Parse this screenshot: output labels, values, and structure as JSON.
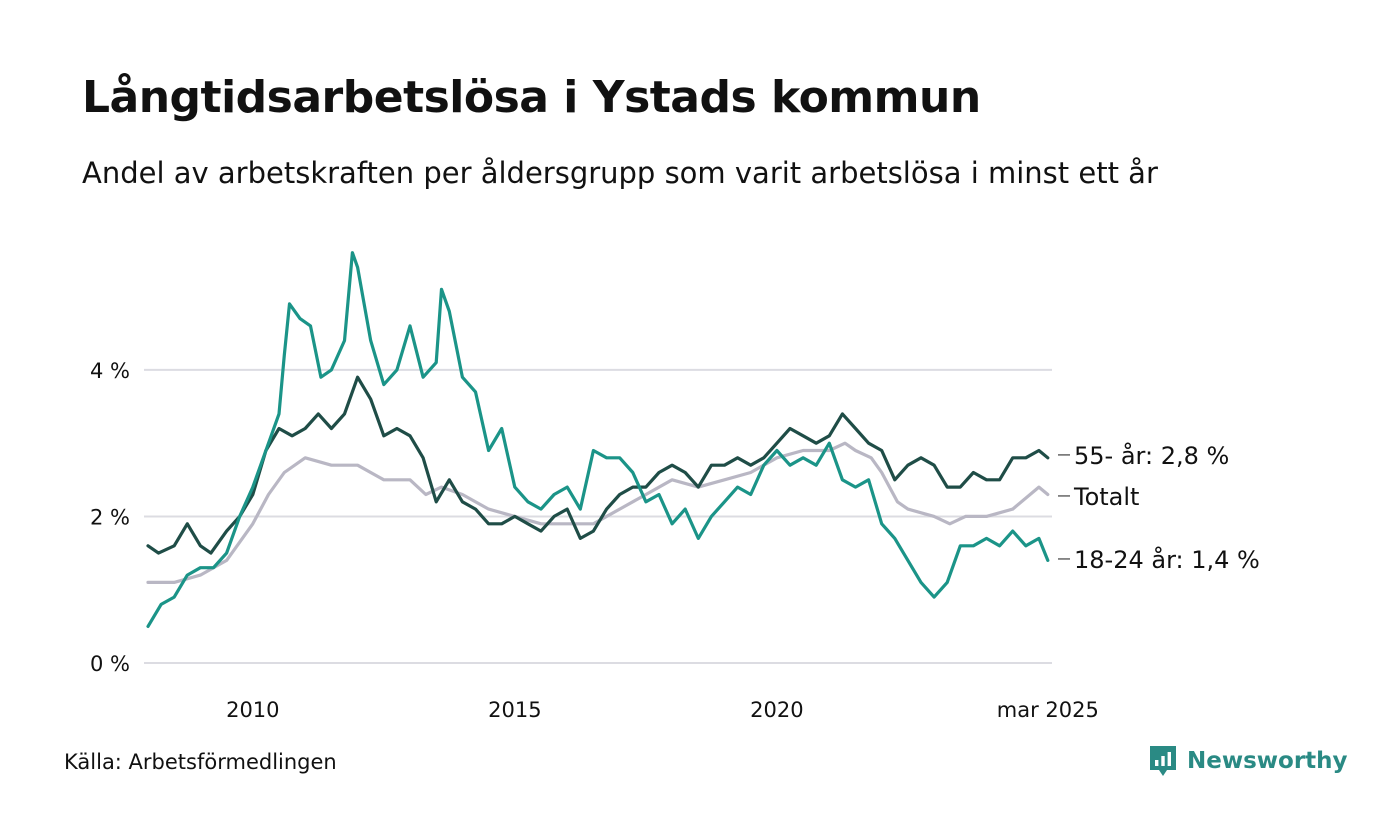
{
  "header": {
    "title": "Långtidsarbetslösa i Ystads kommun",
    "subtitle": "Andel av arbetskraften per åldersgrupp som varit arbetslösa i minst ett år"
  },
  "footer": {
    "source": "Källa: Arbetsförmedlingen",
    "brand": "Newsworthy",
    "brand_color": "#2a8a84"
  },
  "colors": {
    "youth": "#1b9488",
    "senior": "#1f4d47",
    "total": "#b9b7c4",
    "grid": "#dcdce2"
  },
  "chart_data": {
    "type": "line",
    "title": "Långtidsarbetslösa i Ystads kommun",
    "subtitle": "Andel av arbetskraften per åldersgrupp som varit arbetslösa i minst ett år",
    "xlabel": "",
    "ylabel": "",
    "xlim": [
      2008.0,
      2025.25
    ],
    "ylim": [
      0,
      5.8
    ],
    "grid": true,
    "legend": "none",
    "x_ticks": [
      {
        "value": 2010,
        "label": "2010"
      },
      {
        "value": 2015,
        "label": "2015"
      },
      {
        "value": 2020,
        "label": "2020"
      },
      {
        "value": 2025.17,
        "label": "mar 2025"
      }
    ],
    "y_ticks": [
      {
        "value": 0,
        "label": "0 %"
      },
      {
        "value": 2,
        "label": "2 %"
      },
      {
        "value": 4,
        "label": "4 %"
      }
    ],
    "series": [
      {
        "key": "total",
        "label": "Totalt",
        "points": [
          [
            2008.0,
            1.1
          ],
          [
            2008.5,
            1.1
          ],
          [
            2009.0,
            1.2
          ],
          [
            2009.5,
            1.4
          ],
          [
            2010.0,
            1.9
          ],
          [
            2010.3,
            2.3
          ],
          [
            2010.6,
            2.6
          ],
          [
            2011.0,
            2.8
          ],
          [
            2011.5,
            2.7
          ],
          [
            2012.0,
            2.7
          ],
          [
            2012.5,
            2.5
          ],
          [
            2013.0,
            2.5
          ],
          [
            2013.3,
            2.3
          ],
          [
            2013.6,
            2.4
          ],
          [
            2014.0,
            2.3
          ],
          [
            2014.5,
            2.1
          ],
          [
            2015.0,
            2.0
          ],
          [
            2015.5,
            1.9
          ],
          [
            2016.0,
            1.9
          ],
          [
            2016.5,
            1.9
          ],
          [
            2017.0,
            2.1
          ],
          [
            2017.5,
            2.3
          ],
          [
            2018.0,
            2.5
          ],
          [
            2018.5,
            2.4
          ],
          [
            2019.0,
            2.5
          ],
          [
            2019.5,
            2.6
          ],
          [
            2020.0,
            2.8
          ],
          [
            2020.5,
            2.9
          ],
          [
            2021.0,
            2.9
          ],
          [
            2021.3,
            3.0
          ],
          [
            2021.5,
            2.9
          ],
          [
            2021.8,
            2.8
          ],
          [
            2022.0,
            2.6
          ],
          [
            2022.3,
            2.2
          ],
          [
            2022.5,
            2.1
          ],
          [
            2023.0,
            2.0
          ],
          [
            2023.3,
            1.9
          ],
          [
            2023.6,
            2.0
          ],
          [
            2024.0,
            2.0
          ],
          [
            2024.5,
            2.1
          ],
          [
            2025.0,
            2.4
          ],
          [
            2025.17,
            2.3
          ]
        ]
      },
      {
        "key": "senior",
        "label": "55- år: 2,8 %",
        "points": [
          [
            2008.0,
            1.6
          ],
          [
            2008.2,
            1.5
          ],
          [
            2008.5,
            1.6
          ],
          [
            2008.75,
            1.9
          ],
          [
            2009.0,
            1.6
          ],
          [
            2009.2,
            1.5
          ],
          [
            2009.5,
            1.8
          ],
          [
            2009.75,
            2.0
          ],
          [
            2010.0,
            2.3
          ],
          [
            2010.25,
            2.9
          ],
          [
            2010.5,
            3.2
          ],
          [
            2010.75,
            3.1
          ],
          [
            2011.0,
            3.2
          ],
          [
            2011.25,
            3.4
          ],
          [
            2011.5,
            3.2
          ],
          [
            2011.75,
            3.4
          ],
          [
            2012.0,
            3.9
          ],
          [
            2012.25,
            3.6
          ],
          [
            2012.5,
            3.1
          ],
          [
            2012.75,
            3.2
          ],
          [
            2013.0,
            3.1
          ],
          [
            2013.25,
            2.8
          ],
          [
            2013.5,
            2.2
          ],
          [
            2013.75,
            2.5
          ],
          [
            2014.0,
            2.2
          ],
          [
            2014.25,
            2.1
          ],
          [
            2014.5,
            1.9
          ],
          [
            2014.75,
            1.9
          ],
          [
            2015.0,
            2.0
          ],
          [
            2015.25,
            1.9
          ],
          [
            2015.5,
            1.8
          ],
          [
            2015.75,
            2.0
          ],
          [
            2016.0,
            2.1
          ],
          [
            2016.25,
            1.7
          ],
          [
            2016.5,
            1.8
          ],
          [
            2016.75,
            2.1
          ],
          [
            2017.0,
            2.3
          ],
          [
            2017.25,
            2.4
          ],
          [
            2017.5,
            2.4
          ],
          [
            2017.75,
            2.6
          ],
          [
            2018.0,
            2.7
          ],
          [
            2018.25,
            2.6
          ],
          [
            2018.5,
            2.4
          ],
          [
            2018.75,
            2.7
          ],
          [
            2019.0,
            2.7
          ],
          [
            2019.25,
            2.8
          ],
          [
            2019.5,
            2.7
          ],
          [
            2019.75,
            2.8
          ],
          [
            2020.0,
            3.0
          ],
          [
            2020.25,
            3.2
          ],
          [
            2020.5,
            3.1
          ],
          [
            2020.75,
            3.0
          ],
          [
            2021.0,
            3.1
          ],
          [
            2021.25,
            3.4
          ],
          [
            2021.5,
            3.2
          ],
          [
            2021.75,
            3.0
          ],
          [
            2022.0,
            2.9
          ],
          [
            2022.25,
            2.5
          ],
          [
            2022.5,
            2.7
          ],
          [
            2022.75,
            2.8
          ],
          [
            2023.0,
            2.7
          ],
          [
            2023.25,
            2.4
          ],
          [
            2023.5,
            2.4
          ],
          [
            2023.75,
            2.6
          ],
          [
            2024.0,
            2.5
          ],
          [
            2024.25,
            2.5
          ],
          [
            2024.5,
            2.8
          ],
          [
            2024.75,
            2.8
          ],
          [
            2025.0,
            2.9
          ],
          [
            2025.17,
            2.8
          ]
        ]
      },
      {
        "key": "youth",
        "label": "18-24 år: 1,4 %",
        "points": [
          [
            2008.0,
            0.5
          ],
          [
            2008.25,
            0.8
          ],
          [
            2008.5,
            0.9
          ],
          [
            2008.75,
            1.2
          ],
          [
            2009.0,
            1.3
          ],
          [
            2009.25,
            1.3
          ],
          [
            2009.5,
            1.5
          ],
          [
            2009.75,
            2.0
          ],
          [
            2010.0,
            2.4
          ],
          [
            2010.25,
            2.9
          ],
          [
            2010.5,
            3.4
          ],
          [
            2010.6,
            4.2
          ],
          [
            2010.7,
            4.9
          ],
          [
            2010.9,
            4.7
          ],
          [
            2011.1,
            4.6
          ],
          [
            2011.3,
            3.9
          ],
          [
            2011.5,
            4.0
          ],
          [
            2011.75,
            4.4
          ],
          [
            2011.9,
            5.6
          ],
          [
            2012.0,
            5.4
          ],
          [
            2012.25,
            4.4
          ],
          [
            2012.5,
            3.8
          ],
          [
            2012.75,
            4.0
          ],
          [
            2013.0,
            4.6
          ],
          [
            2013.25,
            3.9
          ],
          [
            2013.5,
            4.1
          ],
          [
            2013.6,
            5.1
          ],
          [
            2013.75,
            4.8
          ],
          [
            2014.0,
            3.9
          ],
          [
            2014.25,
            3.7
          ],
          [
            2014.5,
            2.9
          ],
          [
            2014.75,
            3.2
          ],
          [
            2015.0,
            2.4
          ],
          [
            2015.25,
            2.2
          ],
          [
            2015.5,
            2.1
          ],
          [
            2015.75,
            2.3
          ],
          [
            2016.0,
            2.4
          ],
          [
            2016.25,
            2.1
          ],
          [
            2016.5,
            2.9
          ],
          [
            2016.75,
            2.8
          ],
          [
            2017.0,
            2.8
          ],
          [
            2017.25,
            2.6
          ],
          [
            2017.5,
            2.2
          ],
          [
            2017.75,
            2.3
          ],
          [
            2018.0,
            1.9
          ],
          [
            2018.25,
            2.1
          ],
          [
            2018.5,
            1.7
          ],
          [
            2018.75,
            2.0
          ],
          [
            2019.0,
            2.2
          ],
          [
            2019.25,
            2.4
          ],
          [
            2019.5,
            2.3
          ],
          [
            2019.75,
            2.7
          ],
          [
            2020.0,
            2.9
          ],
          [
            2020.25,
            2.7
          ],
          [
            2020.5,
            2.8
          ],
          [
            2020.75,
            2.7
          ],
          [
            2021.0,
            3.0
          ],
          [
            2021.25,
            2.5
          ],
          [
            2021.5,
            2.4
          ],
          [
            2021.75,
            2.5
          ],
          [
            2022.0,
            1.9
          ],
          [
            2022.25,
            1.7
          ],
          [
            2022.5,
            1.4
          ],
          [
            2022.75,
            1.1
          ],
          [
            2023.0,
            0.9
          ],
          [
            2023.25,
            1.1
          ],
          [
            2023.5,
            1.6
          ],
          [
            2023.75,
            1.6
          ],
          [
            2024.0,
            1.7
          ],
          [
            2024.25,
            1.6
          ],
          [
            2024.5,
            1.8
          ],
          [
            2024.75,
            1.6
          ],
          [
            2025.0,
            1.7
          ],
          [
            2025.17,
            1.4
          ]
        ]
      }
    ],
    "end_labels": [
      {
        "series": "senior",
        "text": "55- år: 2,8 %",
        "label_value": 2.84
      },
      {
        "series": "total",
        "text": "Totalt",
        "label_value": 2.28
      },
      {
        "series": "youth",
        "text": "18-24 år: 1,4 %",
        "label_value": 1.42
      }
    ]
  }
}
